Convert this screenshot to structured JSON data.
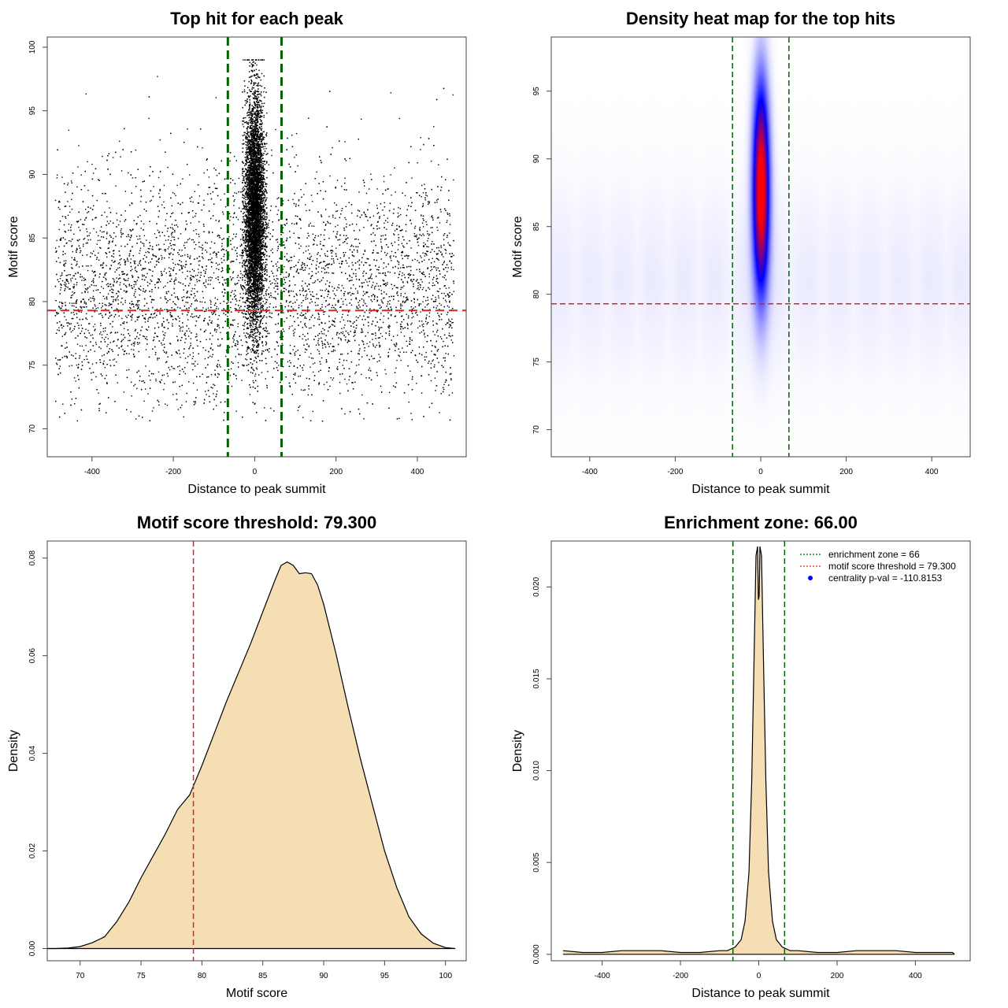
{
  "colors": {
    "points": "#000000",
    "zone_line": "#006400",
    "threshold_line": "#dd2222",
    "density_fill": "#f5deb3",
    "heat_mid": "#0000ff",
    "heat_high": "#ff0000",
    "legend_dot": "#0000ff"
  },
  "chart_data": [
    {
      "type": "scatter",
      "title": "Top hit for each peak",
      "xlabel": "Distance to peak summit",
      "ylabel": "Motif score",
      "xlim": [
        -510,
        520
      ],
      "ylim": [
        67.8,
        100.8
      ],
      "xticks": [
        -400,
        -200,
        0,
        200,
        400
      ],
      "yticks": [
        70,
        75,
        80,
        85,
        90,
        95,
        100
      ],
      "zone_lines_x": [
        -66,
        66
      ],
      "threshold_y": 79.3,
      "grid": false,
      "points": {
        "central": {
          "x_center": 0,
          "x_sd": 12,
          "x_range": [
            -30,
            30
          ],
          "y_center": 87,
          "y_sd": 4.5,
          "y_range": [
            72,
            99
          ],
          "count": 9000
        },
        "background": {
          "x_range": [
            -490,
            490
          ],
          "y_center": 81,
          "y_sd": 4.5,
          "y_range": [
            70.5,
            98
          ],
          "count": 6500
        }
      }
    },
    {
      "type": "heatmap",
      "title": "Density heat map for the top hits",
      "xlabel": "Distance to peak summit",
      "ylabel": "Motif score",
      "xlim": [
        -490,
        490
      ],
      "ylim": [
        68,
        99
      ],
      "xticks": [
        -400,
        -200,
        0,
        200,
        400
      ],
      "yticks": [
        70,
        75,
        80,
        85,
        90,
        95
      ],
      "zone_lines_x": [
        -66,
        66
      ],
      "threshold_y": 79.3,
      "peak": {
        "x": 0,
        "y": 87.8,
        "x_sd": 13,
        "y_sd": 5.2
      }
    },
    {
      "type": "area",
      "title": "Motif score threshold: 79.300",
      "xlabel": "Motif score",
      "ylabel": "Density",
      "xlim": [
        67.3,
        101.7
      ],
      "ylim": [
        -0.0025,
        0.0835
      ],
      "xticks": [
        70,
        75,
        80,
        85,
        90,
        95,
        100
      ],
      "yticks": [
        0.0,
        0.02,
        0.04,
        0.06,
        0.08
      ],
      "ytick_labels": [
        "0.00",
        "0.02",
        "0.04",
        "0.06",
        "0.08"
      ],
      "threshold_x": 79.3,
      "x": [
        66.5,
        68,
        69,
        70,
        71,
        72,
        73,
        74,
        75,
        76,
        77,
        78,
        79,
        80,
        81,
        82,
        83,
        84,
        85,
        86,
        86.5,
        87,
        87.5,
        88,
        88.5,
        89,
        89.5,
        90,
        91,
        92,
        93,
        94,
        95,
        96,
        97,
        98,
        99,
        100,
        100.8
      ],
      "y": [
        0.0,
        0.0,
        0.0001,
        0.0004,
        0.0012,
        0.0024,
        0.0055,
        0.0095,
        0.0145,
        0.019,
        0.0235,
        0.0285,
        0.0315,
        0.0375,
        0.044,
        0.0505,
        0.0565,
        0.0625,
        0.069,
        0.0755,
        0.0785,
        0.0792,
        0.0785,
        0.0768,
        0.077,
        0.0768,
        0.0745,
        0.0705,
        0.0605,
        0.0495,
        0.039,
        0.0295,
        0.02,
        0.0125,
        0.0065,
        0.003,
        0.0011,
        0.0002,
        0.0
      ]
    },
    {
      "type": "area",
      "title": "Enrichment zone: 66.00",
      "xlabel": "Distance to peak summit",
      "ylabel": "Density",
      "xlim": [
        -530,
        540
      ],
      "ylim": [
        -0.00035,
        0.0225
      ],
      "xticks": [
        -400,
        -200,
        0,
        200,
        400
      ],
      "yticks": [
        0.0,
        0.005,
        0.01,
        0.015,
        0.02
      ],
      "ytick_labels": [
        "0.000",
        "0.005",
        "0.010",
        "0.015",
        "0.020"
      ],
      "zone_lines_x": [
        -66,
        66
      ],
      "x": [
        -500,
        -450,
        -400,
        -350,
        -300,
        -250,
        -200,
        -150,
        -100,
        -80,
        -60,
        -45,
        -35,
        -25,
        -18,
        -12,
        -7,
        -3,
        -1,
        1,
        3,
        7,
        12,
        18,
        25,
        35,
        45,
        60,
        80,
        100,
        150,
        200,
        250,
        300,
        350,
        400,
        450,
        495,
        500
      ],
      "y": [
        0.0002,
        0.0001,
        0.0001,
        0.0002,
        0.0002,
        0.0002,
        0.0001,
        0.0001,
        0.0002,
        0.0002,
        0.0004,
        0.0008,
        0.0018,
        0.0045,
        0.0095,
        0.016,
        0.0217,
        0.0222,
        0.0193,
        0.0195,
        0.0222,
        0.0217,
        0.016,
        0.0095,
        0.0045,
        0.0018,
        0.0008,
        0.0004,
        0.0002,
        0.0002,
        0.0001,
        0.0001,
        0.0002,
        0.0002,
        0.0002,
        0.0001,
        0.0001,
        0.0001,
        0.0
      ],
      "legend": {
        "position": "top-right",
        "entries": [
          {
            "label": "enrichment zone = 66",
            "symbol": "dotted-line",
            "color": "#006400"
          },
          {
            "label": "motif score threshold = 79.300",
            "symbol": "dotted-line",
            "color": "#dd2222"
          },
          {
            "label": "centrality p-val = -110.8153",
            "symbol": "dot",
            "color": "#0000ff"
          }
        ]
      }
    }
  ]
}
